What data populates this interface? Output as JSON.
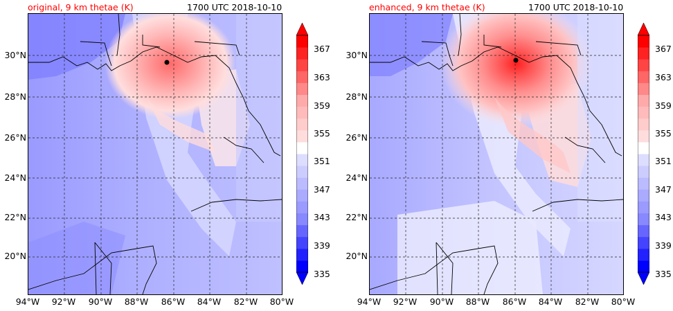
{
  "panels": [
    {
      "id": "original",
      "title_left": "original, 9 km thetae (K)",
      "title_right": "1700 UTC 2018-10-10",
      "storm_center": {
        "lon": -86.3,
        "lat": 29.65
      }
    },
    {
      "id": "enhanced",
      "title_left": "enhanced, 9 km thetae (K)",
      "title_right": "1700 UTC 2018-10-10",
      "storm_center": {
        "lon": -85.9,
        "lat": 29.75
      }
    }
  ],
  "map": {
    "lon_range": [
      -94,
      -80
    ],
    "lat_range": [
      18.2,
      32.0
    ],
    "lat_labels": [
      "20°N",
      "22°N",
      "24°N",
      "26°N",
      "28°N",
      "30°N"
    ],
    "lon_labels": [
      "94°W",
      "92°W",
      "90°W",
      "88°W",
      "86°W",
      "84°W",
      "82°W",
      "80°W"
    ]
  },
  "colorbar": {
    "ticks": [
      "335",
      "339",
      "343",
      "347",
      "351",
      "355",
      "359",
      "363",
      "367"
    ],
    "colors": [
      "#0000ff",
      "#2222ff",
      "#4444ff",
      "#6666ff",
      "#8888ff",
      "#9a9aff",
      "#aaaaff",
      "#bbbbff",
      "#ccccff",
      "#ddddff",
      "#ffffff",
      "#ffdddd",
      "#ffcccc",
      "#ffbbbb",
      "#ffaaaa",
      "#ff8888",
      "#ff6666",
      "#ff4444",
      "#ff2222",
      "#ff0000"
    ]
  }
}
